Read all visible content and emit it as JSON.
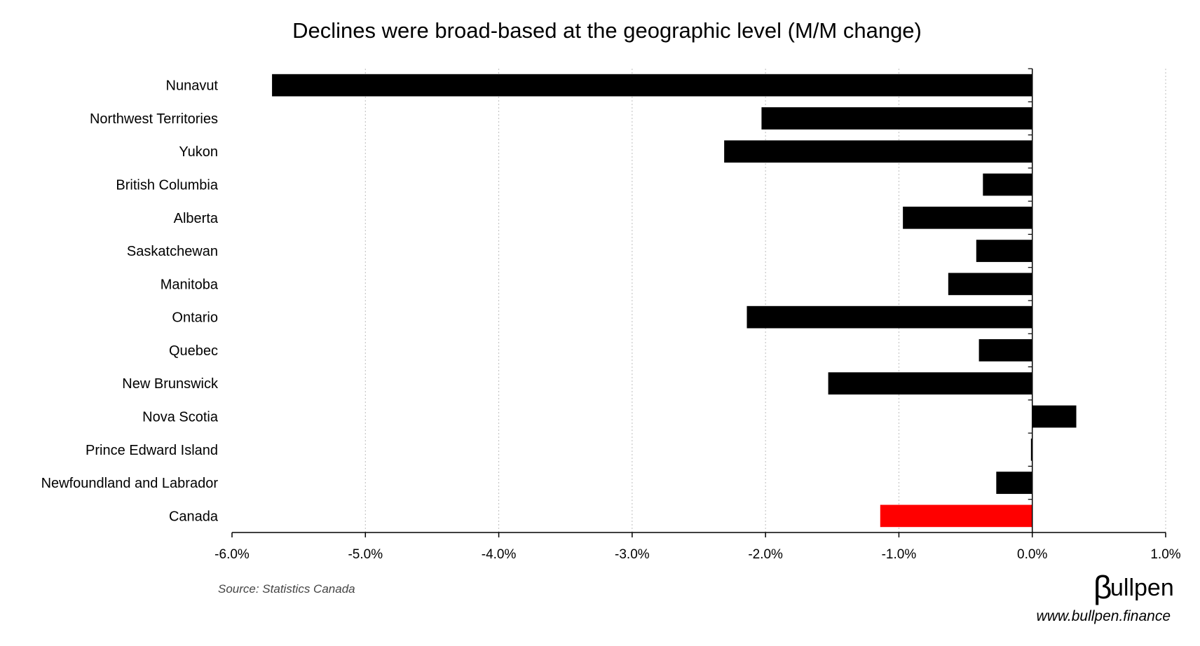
{
  "chart_data": {
    "type": "bar",
    "orientation": "horizontal",
    "title": "Declines were broad-based at the geographic level (M/M change)",
    "categories": [
      "Nunavut",
      "Northwest Territories",
      "Yukon",
      "British Columbia",
      "Alberta",
      "Saskatchewan",
      "Manitoba",
      "Ontario",
      "Quebec",
      "New Brunswick",
      "Nova Scotia",
      "Prince Edward Island",
      "Newfoundland and Labrador",
      "Canada"
    ],
    "values": [
      -5.7,
      -2.03,
      -2.31,
      -0.37,
      -0.97,
      -0.42,
      -0.63,
      -2.14,
      -0.4,
      -1.53,
      0.33,
      -0.01,
      -0.27,
      -1.14
    ],
    "value_unit": "%",
    "xlim": [
      -6.0,
      1.0
    ],
    "xticks": [
      -6.0,
      -5.0,
      -4.0,
      -3.0,
      -2.0,
      -1.0,
      0.0,
      1.0
    ],
    "xtick_labels": [
      "-6.0%",
      "-5.0%",
      "-4.0%",
      "-3.0%",
      "-2.0%",
      "-1.0%",
      "0.0%",
      "1.0%"
    ],
    "grid": "vertical dotted",
    "legend": "none",
    "colors": {
      "default": "#000000",
      "highlight": "#ff0000"
    },
    "highlight_category": "Canada"
  },
  "source": "Source: Statistics Canada",
  "brand": {
    "logo_glyph": "β",
    "logo_text": "ullpen",
    "website": "www.bullpen.finance"
  }
}
